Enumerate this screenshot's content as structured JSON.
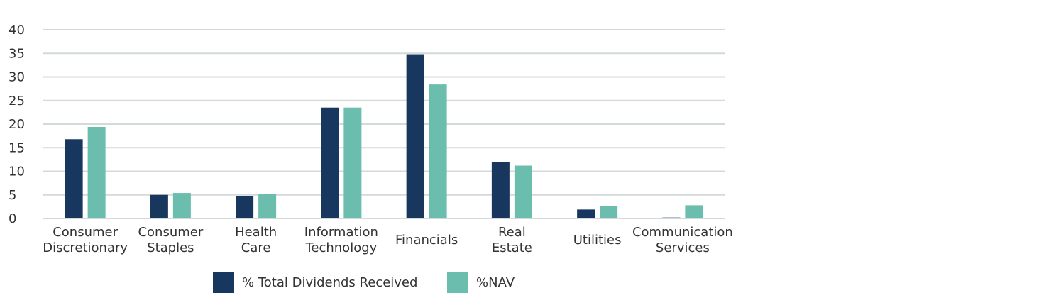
{
  "chart_data": {
    "type": "bar",
    "categories": [
      [
        "Consumer",
        "Discretionary"
      ],
      [
        "Consumer",
        "Staples"
      ],
      [
        "Health",
        "Care"
      ],
      [
        "Information",
        "Technology"
      ],
      [
        "Financials"
      ],
      [
        "Real",
        "Estate"
      ],
      [
        "Utilities"
      ],
      [
        "Communication",
        "Services"
      ]
    ],
    "series": [
      {
        "name": "% Total Dividends Received",
        "color": "#17375e",
        "values": [
          16.8,
          5.0,
          4.8,
          23.5,
          34.8,
          11.9,
          1.9,
          0.2
        ]
      },
      {
        "name": "%NAV",
        "color": "#6bbdad",
        "values": [
          19.4,
          5.4,
          5.2,
          23.5,
          28.4,
          11.2,
          2.6,
          2.8
        ]
      }
    ],
    "ylim": [
      0,
      40
    ],
    "yticks": [
      0,
      5,
      10,
      15,
      20,
      25,
      30,
      35,
      40
    ],
    "grid": true,
    "grid_color": "#d4d9d9",
    "legend_position": "bottom"
  }
}
